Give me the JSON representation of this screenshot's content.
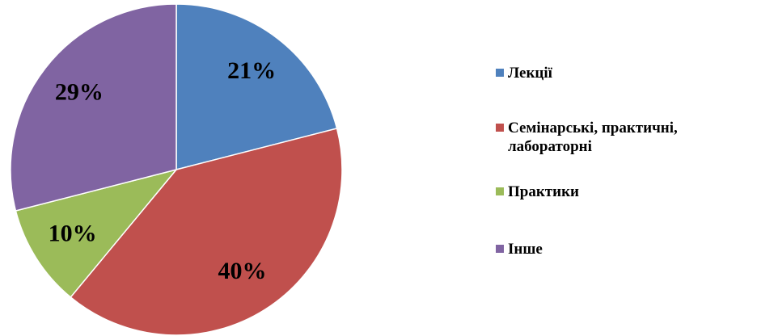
{
  "chart_data": {
    "type": "pie",
    "categories": [
      "Лекції",
      "Семінарські, практичні, лабораторні",
      "Практики",
      "Інше"
    ],
    "values": [
      21,
      40,
      10,
      29
    ],
    "value_labels": [
      "21%",
      "40%",
      "10%",
      "29%"
    ],
    "colors": [
      "#4f81bd",
      "#c0504d",
      "#9bbb59",
      "#8064a2"
    ],
    "legend": "right"
  }
}
